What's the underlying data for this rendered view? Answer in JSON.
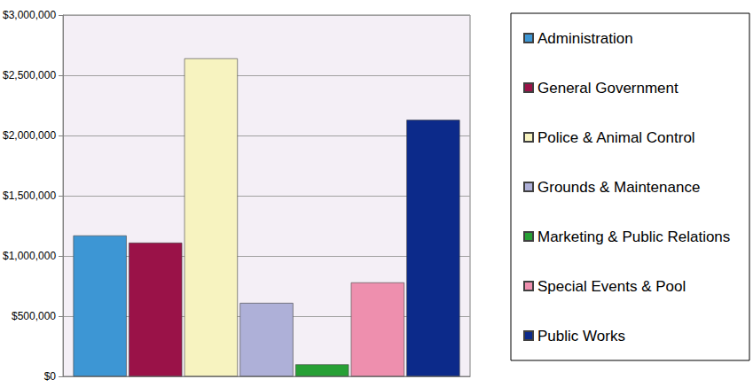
{
  "chart_data": {
    "type": "bar",
    "categories": [
      null
    ],
    "series": [
      {
        "name": "Administration",
        "color": "#3d96d4",
        "values": [
          1170000
        ]
      },
      {
        "name": "General Government",
        "color": "#9a1248",
        "values": [
          1110000
        ]
      },
      {
        "name": "Police & Animal Control",
        "color": "#f7f3c0",
        "values": [
          2640000
        ]
      },
      {
        "name": "Grounds & Maintenance",
        "color": "#aeb0d8",
        "values": [
          610000
        ]
      },
      {
        "name": "Marketing & Public Relations",
        "color": "#27a035",
        "values": [
          100000
        ]
      },
      {
        "name": "Special Events & Pool",
        "color": "#ee8fae",
        "values": [
          780000
        ]
      },
      {
        "name": "Public Works",
        "color": "#0c2a8a",
        "values": [
          2130000
        ]
      }
    ],
    "ylim": [
      0,
      3000000
    ],
    "yticks": [
      {
        "value": 0,
        "label": "$0"
      },
      {
        "value": 500000,
        "label": "$500,000"
      },
      {
        "value": 1000000,
        "label": "$1,000,000"
      },
      {
        "value": 1500000,
        "label": "$1,500,000"
      },
      {
        "value": 2000000,
        "label": "$2,000,000"
      },
      {
        "value": 2500000,
        "label": "$2,500,000"
      },
      {
        "value": 3000000,
        "label": "$3,000,000"
      }
    ],
    "grid": true,
    "legend": "right",
    "tick_labels": "y"
  }
}
